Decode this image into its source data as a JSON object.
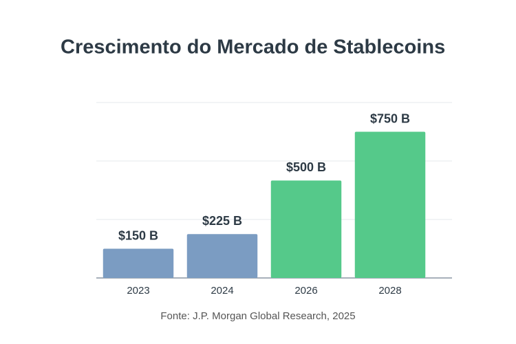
{
  "chart_data": {
    "type": "bar",
    "title": "Crescimento do Mercado de Stablecoins",
    "categories": [
      "2023",
      "2024",
      "2026",
      "2028"
    ],
    "values": [
      150,
      225,
      500,
      750
    ],
    "value_labels": [
      "$150 B",
      "$225 B",
      "$500 B",
      "$750 B"
    ],
    "colors": [
      "#7b9cc2",
      "#7b9cc2",
      "#55c98a",
      "#55c98a"
    ],
    "ylim": [
      0,
      900
    ],
    "yticks": [
      0,
      300,
      600,
      900
    ],
    "grid": true,
    "source": "Fonte: J.P. Morgan Global Research, 2025"
  }
}
